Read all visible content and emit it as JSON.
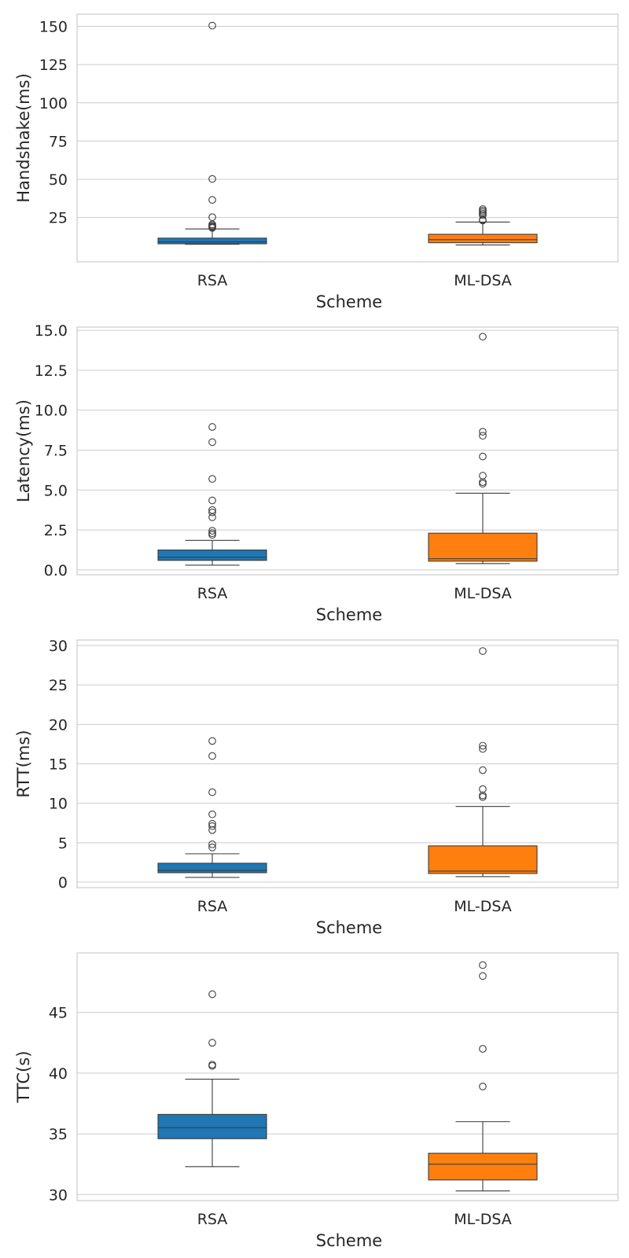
{
  "chart_data": [
    {
      "type": "box",
      "xlabel": "Scheme",
      "ylabel": "Handshake(ms)",
      "categories": [
        "RSA",
        "ML-DSA"
      ],
      "ylim": [
        -4,
        158
      ],
      "yticks": [
        25,
        50,
        75,
        100,
        125,
        150
      ],
      "grid": true,
      "boxes": [
        {
          "category": "RSA",
          "color": "#1f77b4",
          "whisker_low": 7.5,
          "q1": 7.8,
          "median": 9.0,
          "q3": 11.5,
          "whisker_high": 17.5,
          "outliers": [
            150.5,
            50.2,
            36.5,
            25.2,
            20.5,
            19.7,
            19.0,
            18.5,
            18.2
          ]
        },
        {
          "category": "ML-DSA",
          "color": "#ff7f0e",
          "whisker_low": 7.0,
          "q1": 8.5,
          "median": 10.5,
          "q3": 14.0,
          "whisker_high": 22.0,
          "outliers": [
            30.5,
            29.5,
            28.5,
            27.5,
            26.5,
            23.5,
            23.0
          ]
        }
      ]
    },
    {
      "type": "box",
      "xlabel": "Scheme",
      "ylabel": "Latency(ms)",
      "categories": [
        "RSA",
        "ML-DSA"
      ],
      "ylim": [
        -0.3,
        15.2
      ],
      "yticks": [
        0.0,
        2.5,
        5.0,
        7.5,
        10.0,
        12.5,
        15.0
      ],
      "tick_format": 1,
      "grid": true,
      "boxes": [
        {
          "category": "RSA",
          "color": "#1f77b4",
          "whisker_low": 0.3,
          "q1": 0.6,
          "median": 0.8,
          "q3": 1.25,
          "whisker_high": 1.85,
          "outliers": [
            8.95,
            8.0,
            5.7,
            4.35,
            3.75,
            3.6,
            3.3,
            2.45,
            2.3,
            2.2
          ]
        },
        {
          "category": "ML-DSA",
          "color": "#ff7f0e",
          "whisker_low": 0.4,
          "q1": 0.55,
          "median": 0.7,
          "q3": 2.3,
          "whisker_high": 4.8,
          "outliers": [
            14.6,
            8.65,
            8.4,
            7.1,
            5.9,
            5.5,
            5.4
          ]
        }
      ]
    },
    {
      "type": "box",
      "xlabel": "Scheme",
      "ylabel": "RTT(ms)",
      "categories": [
        "RSA",
        "ML-DSA"
      ],
      "ylim": [
        -0.7,
        30.7
      ],
      "yticks": [
        0,
        5,
        10,
        15,
        20,
        25,
        30
      ],
      "grid": true,
      "boxes": [
        {
          "category": "RSA",
          "color": "#1f77b4",
          "whisker_low": 0.6,
          "q1": 1.2,
          "median": 1.5,
          "q3": 2.4,
          "whisker_high": 3.6,
          "outliers": [
            17.9,
            16.0,
            11.4,
            8.6,
            7.4,
            7.1,
            6.6,
            4.8,
            4.4
          ]
        },
        {
          "category": "ML-DSA",
          "color": "#ff7f0e",
          "whisker_low": 0.7,
          "q1": 1.1,
          "median": 1.4,
          "q3": 4.6,
          "whisker_high": 9.6,
          "outliers": [
            29.3,
            17.3,
            16.9,
            14.2,
            11.8,
            11.0,
            10.8
          ]
        }
      ]
    },
    {
      "type": "box",
      "xlabel": "Scheme",
      "ylabel": "TTC(s)",
      "categories": [
        "RSA",
        "ML-DSA"
      ],
      "ylim": [
        29.5,
        49.9
      ],
      "yticks": [
        30,
        35,
        40,
        45
      ],
      "grid": true,
      "boxes": [
        {
          "category": "RSA",
          "color": "#1f77b4",
          "whisker_low": 32.3,
          "q1": 34.6,
          "median": 35.5,
          "q3": 36.6,
          "whisker_high": 39.5,
          "outliers": [
            46.5,
            42.5,
            40.7,
            40.6
          ]
        },
        {
          "category": "ML-DSA",
          "color": "#ff7f0e",
          "whisker_low": 30.3,
          "q1": 31.2,
          "median": 32.5,
          "q3": 33.4,
          "whisker_high": 36.0,
          "outliers": [
            48.9,
            48.0,
            42.0,
            38.9
          ]
        }
      ]
    }
  ]
}
